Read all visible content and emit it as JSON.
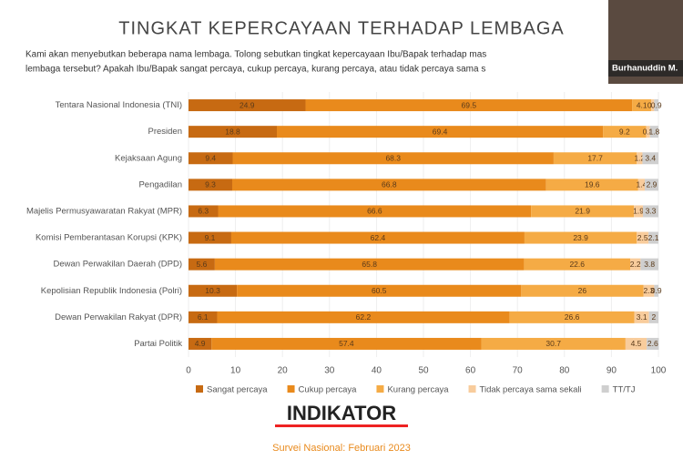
{
  "chart_data": {
    "type": "stacked-bar-horizontal",
    "title": "TINGKAT KEPERCAYAAN TERHADAP LEMBAGA",
    "subtitle": [
      "Kami akan menyebutkan beberapa nama lembaga. Tolong sebutkan tingkat kepercayaan Ibu/Bapak terhadap mas",
      "lembaga tersebut? Apakah Ibu/Bapak sangat percaya, cukup percaya, kurang percaya, atau tidak percaya sama s"
    ],
    "categories": [
      "Tentara Nasional Indonesia (TNI)",
      "Presiden",
      "Kejaksaan Agung",
      "Pengadilan",
      "Majelis Permusyawaratan Rakyat (MPR)",
      "Komisi Pemberantasan Korupsi (KPK)",
      "Dewan Perwakilan Daerah (DPD)",
      "Kepolisian Republik Indonesia (Polri)",
      "Dewan Perwakilan Rakyat (DPR)",
      "Partai Politik"
    ],
    "series": [
      {
        "name": "Sangat percaya",
        "color": "#c76a12",
        "values": [
          24.9,
          18.8,
          9.4,
          9.3,
          6.3,
          9.1,
          5.6,
          10.3,
          6.1,
          4.9
        ]
      },
      {
        "name": "Cukup percaya",
        "color": "#e98a1c",
        "values": [
          69.5,
          69.4,
          68.3,
          66.8,
          66.6,
          62.4,
          65.8,
          60.5,
          62.2,
          57.4
        ]
      },
      {
        "name": "Kurang percaya",
        "color": "#f5ab45",
        "values": [
          4.1,
          9.2,
          17.7,
          19.6,
          21.9,
          23.9,
          22.6,
          26,
          26.6,
          30.7
        ]
      },
      {
        "name": "Tidak percaya sama sekali",
        "color": "#f8cc9c",
        "values": [
          0.6,
          0.8,
          1.2,
          1.4,
          1.9,
          2.5,
          2.2,
          2.3,
          3.1,
          4.5
        ]
      },
      {
        "name": "TT/TJ",
        "color": "#cfcfcf",
        "values": [
          0.9,
          1.8,
          3.4,
          2.9,
          3.3,
          2.1,
          3.8,
          0.9,
          2,
          2.6
        ]
      }
    ],
    "xlim": [
      0,
      100
    ],
    "xticks": [
      0,
      10,
      20,
      30,
      40,
      50,
      60,
      70,
      80,
      90,
      100
    ]
  },
  "video_label": "Burhanuddin M.",
  "logo": "INDIKATOR",
  "footer": "Survei Nasional: Februari 2023"
}
